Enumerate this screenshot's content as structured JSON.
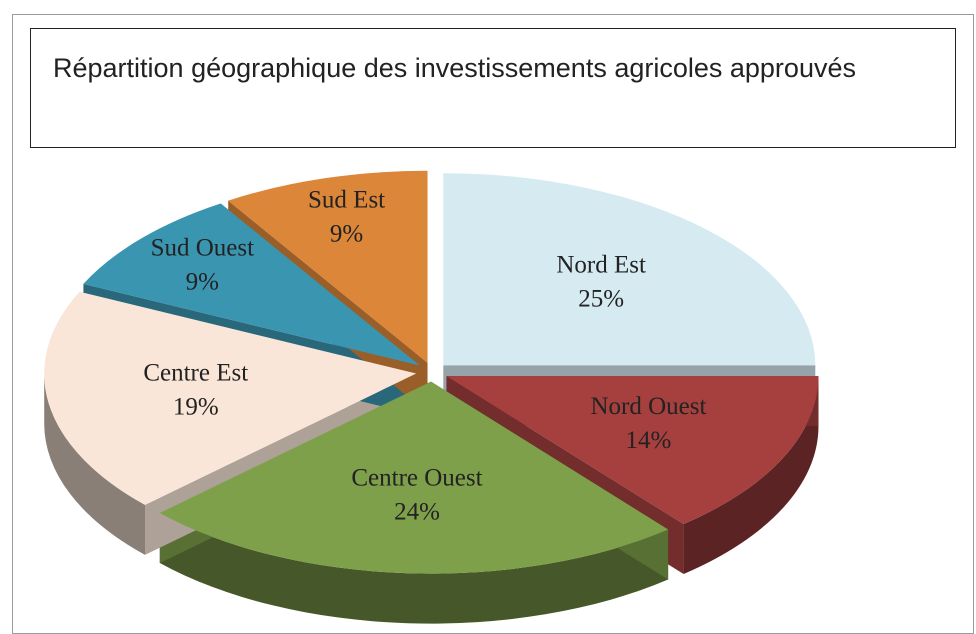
{
  "chart_data": {
    "type": "pie3d",
    "title": "Répartition géographique des investissements agricoles approuvés",
    "categories": [
      "Nord Est",
      "Nord Ouest",
      "Centre Ouest",
      "Centre Est",
      "Sud Ouest",
      "Sud Est"
    ],
    "values": [
      25,
      14,
      24,
      19,
      9,
      9
    ],
    "value_labels": [
      "25%",
      "14%",
      "24%",
      "19%",
      "9%",
      "9%"
    ],
    "colors": [
      "#d6eaf1",
      "#a5403f",
      "#7fa04a",
      "#f9e6d8",
      "#3a95b0",
      "#dc8639"
    ]
  }
}
